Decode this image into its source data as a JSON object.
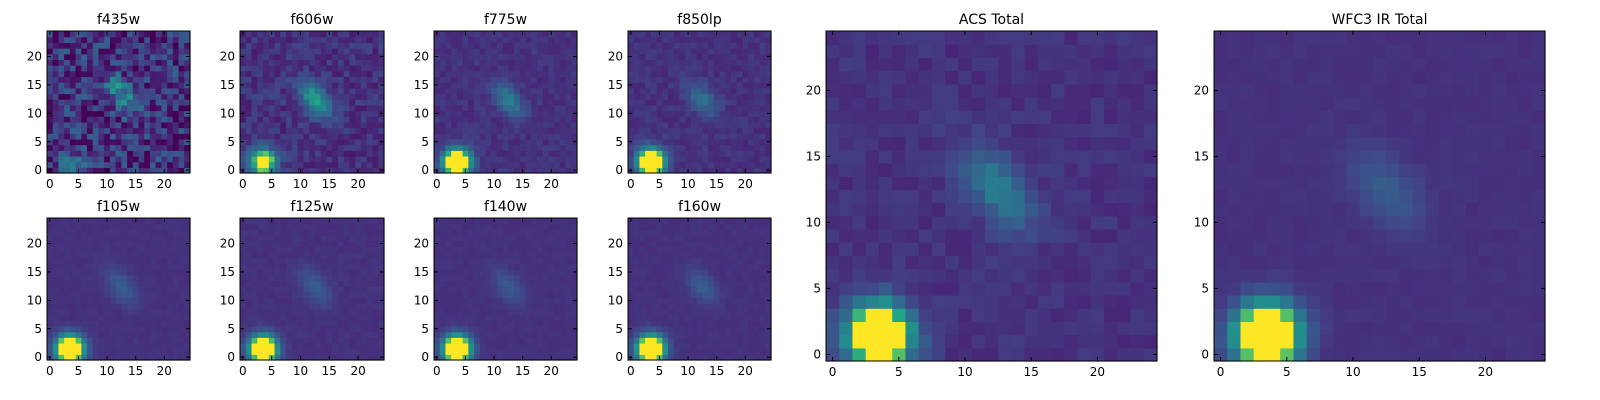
{
  "chart_data": [
    {
      "type": "heatmap",
      "title": "f435w",
      "xticks": [
        0,
        5,
        10,
        15,
        20
      ],
      "yticks": [
        0,
        5,
        10,
        15,
        20
      ],
      "xlim": [
        -0.5,
        24.5
      ],
      "ylim": [
        -0.5,
        24.5
      ],
      "grid_size": 25,
      "colormap": "viridis",
      "source_a": [
        3.5,
        1.5,
        0.25
      ],
      "source_b": [
        12.5,
        13.5,
        0.45
      ],
      "noise": 0.45
    },
    {
      "type": "heatmap",
      "title": "f606w",
      "xticks": [
        0,
        5,
        10,
        15,
        20
      ],
      "yticks": [
        0,
        5,
        10,
        15,
        20
      ],
      "xlim": [
        -0.5,
        24.5
      ],
      "ylim": [
        -0.5,
        24.5
      ],
      "grid_size": 25,
      "colormap": "viridis",
      "source_a": [
        3.5,
        1.5,
        1.0
      ],
      "source_b": [
        12.5,
        12.5,
        0.55
      ],
      "noise": 0.18
    },
    {
      "type": "heatmap",
      "title": "f775w",
      "xticks": [
        0,
        5,
        10,
        15,
        20
      ],
      "yticks": [
        0,
        5,
        10,
        15,
        20
      ],
      "xlim": [
        -0.5,
        24.5
      ],
      "ylim": [
        -0.5,
        24.5
      ],
      "grid_size": 25,
      "colormap": "viridis",
      "source_a": [
        3.5,
        1.5,
        1.4
      ],
      "source_b": [
        12.5,
        12.5,
        0.35
      ],
      "noise": 0.09
    },
    {
      "type": "heatmap",
      "title": "f850lp",
      "xticks": [
        0,
        5,
        10,
        15,
        20
      ],
      "yticks": [
        0,
        5,
        10,
        15,
        20
      ],
      "xlim": [
        -0.5,
        24.5
      ],
      "ylim": [
        -0.5,
        24.5
      ],
      "grid_size": 25,
      "colormap": "viridis",
      "source_a": [
        3.5,
        1.5,
        1.4
      ],
      "source_b": [
        12.5,
        12.5,
        0.3
      ],
      "noise": 0.09
    },
    {
      "type": "heatmap",
      "title": "f105w",
      "xticks": [
        0,
        5,
        10,
        15,
        20
      ],
      "yticks": [
        0,
        5,
        10,
        15,
        20
      ],
      "xlim": [
        -0.5,
        24.5
      ],
      "ylim": [
        -0.5,
        24.5
      ],
      "grid_size": 25,
      "colormap": "viridis",
      "source_a": [
        3.5,
        1.5,
        1.5
      ],
      "source_b": [
        12.5,
        12.5,
        0.2
      ],
      "noise": 0.03
    },
    {
      "type": "heatmap",
      "title": "f125w",
      "xticks": [
        0,
        5,
        10,
        15,
        20
      ],
      "yticks": [
        0,
        5,
        10,
        15,
        20
      ],
      "xlim": [
        -0.5,
        24.5
      ],
      "ylim": [
        -0.5,
        24.5
      ],
      "grid_size": 25,
      "colormap": "viridis",
      "source_a": [
        3.5,
        1.5,
        1.5
      ],
      "source_b": [
        12.5,
        12.5,
        0.2
      ],
      "noise": 0.04
    },
    {
      "type": "heatmap",
      "title": "f140w",
      "xticks": [
        0,
        5,
        10,
        15,
        20
      ],
      "yticks": [
        0,
        5,
        10,
        15,
        20
      ],
      "xlim": [
        -0.5,
        24.5
      ],
      "ylim": [
        -0.5,
        24.5
      ],
      "grid_size": 25,
      "colormap": "viridis",
      "source_a": [
        3.5,
        1.5,
        1.5
      ],
      "source_b": [
        12.5,
        12.5,
        0.18
      ],
      "noise": 0.03
    },
    {
      "type": "heatmap",
      "title": "f160w",
      "xticks": [
        0,
        5,
        10,
        15,
        20
      ],
      "yticks": [
        0,
        5,
        10,
        15,
        20
      ],
      "xlim": [
        -0.5,
        24.5
      ],
      "ylim": [
        -0.5,
        24.5
      ],
      "grid_size": 25,
      "colormap": "viridis",
      "source_a": [
        3.5,
        1.5,
        1.5
      ],
      "source_b": [
        12.5,
        12.5,
        0.2
      ],
      "noise": 0.03
    },
    {
      "type": "heatmap",
      "title": "ACS Total",
      "xticks": [
        0,
        5,
        10,
        15,
        20
      ],
      "yticks": [
        0,
        5,
        10,
        15,
        20
      ],
      "xlim": [
        -0.5,
        24.5
      ],
      "ylim": [
        -0.5,
        24.5
      ],
      "grid_size": 25,
      "colormap": "viridis",
      "source_a": [
        3.5,
        1.5,
        1.4
      ],
      "source_b": [
        12.5,
        12.5,
        0.35
      ],
      "noise": 0.09
    },
    {
      "type": "heatmap",
      "title": "WFC3 IR Total",
      "xticks": [
        0,
        5,
        10,
        15,
        20
      ],
      "yticks": [
        0,
        5,
        10,
        15,
        20
      ],
      "xlim": [
        -0.5,
        24.5
      ],
      "ylim": [
        -0.5,
        24.5
      ],
      "grid_size": 25,
      "colormap": "viridis",
      "source_a": [
        3.5,
        1.5,
        1.5
      ],
      "source_b": [
        12.5,
        12.5,
        0.2
      ],
      "noise": 0.03
    }
  ]
}
